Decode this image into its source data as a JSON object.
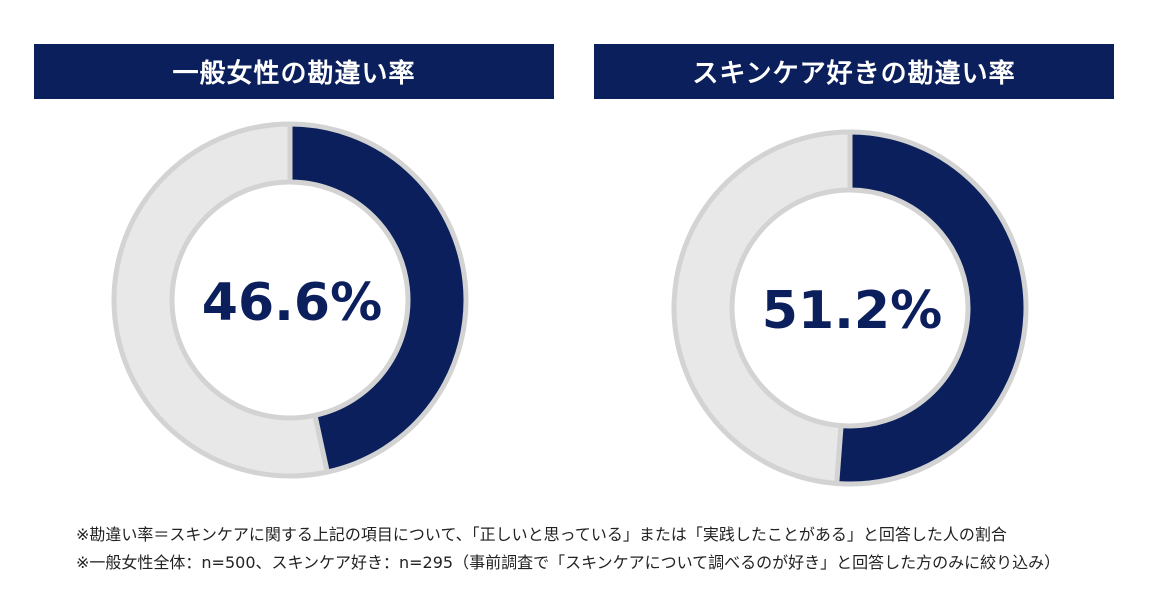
{
  "colors": {
    "accent": "#0b1f5c",
    "track": "#e8e8e8",
    "track_border": "#d3d3d3"
  },
  "panels": [
    {
      "title": "一般女性の勘違い率",
      "label": "46.6%"
    },
    {
      "title": "スキンケア好きの勘違い率",
      "label": "51.2%"
    }
  ],
  "notes": [
    "※勘違い率＝スキンケアに関する上記の項目について、「正しいと思っている」または「実践したことがある」と回答した人の割合",
    "※一般女性全体：n=500、スキンケア好き：n=295（事前調査で「スキンケアについて調べるのが好き」と回答した方のみに絞り込み）"
  ],
  "chart_data": [
    {
      "type": "pie",
      "title": "一般女性の勘違い率",
      "values": [
        46.6,
        53.4
      ],
      "unit": "%"
    },
    {
      "type": "pie",
      "title": "スキンケア好きの勘違い率",
      "values": [
        51.2,
        48.8
      ],
      "unit": "%"
    }
  ]
}
